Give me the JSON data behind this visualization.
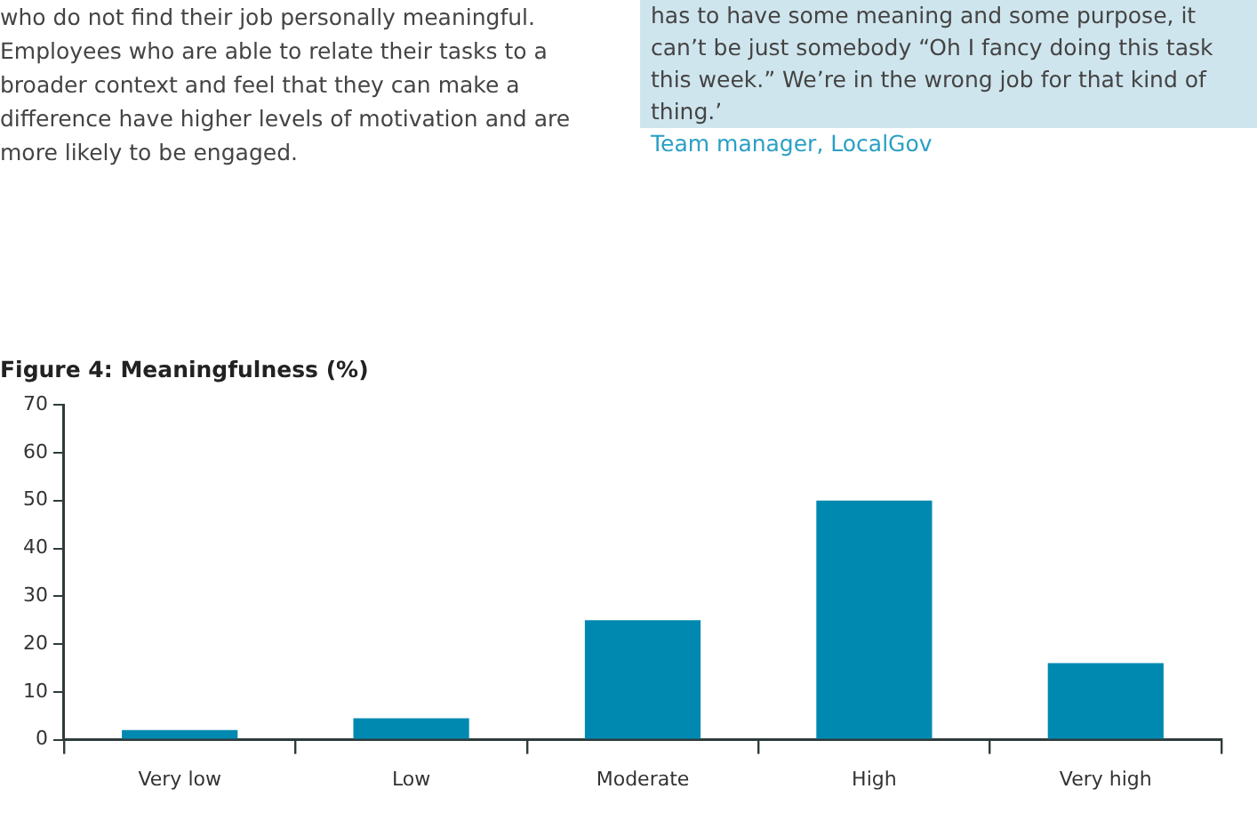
{
  "chart_data": {
    "type": "bar",
    "title": "Figure 4: Meaningfulness (%)",
    "categories": [
      "Very low",
      "Low",
      "Moderate",
      "High",
      "Very high"
    ],
    "values": [
      2,
      4.5,
      25,
      50,
      16
    ],
    "color": "#0089b0",
    "ylim": [
      0,
      70
    ],
    "yticks": [
      0,
      10,
      20,
      30,
      40,
      50,
      60,
      70
    ],
    "grid": false,
    "legend": false,
    "annotations": [
      "who do not find their job personally meaningful. Employees who are able to relate their tasks to a broader context and feel that they can make a difference have higher levels of motivation and are more likely to be engaged.",
      "has to have some meaning and some purpose, it can’t be just somebody “Oh I fancy doing this task this week.” We’re in the wrong job for that kind of thing.’",
      "Team manager, LocalGov"
    ]
  }
}
